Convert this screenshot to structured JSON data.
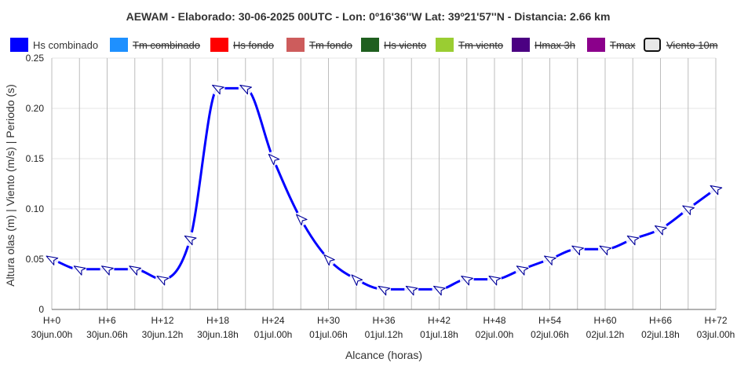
{
  "chart_data": {
    "type": "line",
    "title": "AEWAM  -  Elaborado: 30-06-2025 00UTC  -  Lon: 0º16'36''W Lat: 39º21'57''N  -  Distancia: 2.66 km",
    "xlabel": "Alcance (horas)",
    "ylabel": "Altura olas (m) |  Viento (m/s)  |  Periodo (s)",
    "xlim": [
      0,
      72
    ],
    "ylim": [
      0,
      0.25
    ],
    "yticks": [
      "0",
      "0.05",
      "0.10",
      "0.15",
      "0.20",
      "0.25"
    ],
    "ytick_values": [
      0,
      0.05,
      0.1,
      0.15,
      0.2,
      0.25
    ],
    "grid": true,
    "legend_position": "top",
    "xticks": [
      {
        "h": 0,
        "hour": "H+0",
        "date": "30jun.00h"
      },
      {
        "h": 6,
        "hour": "H+6",
        "date": "30jun.06h"
      },
      {
        "h": 12,
        "hour": "H+12",
        "date": "30jun.12h"
      },
      {
        "h": 18,
        "hour": "H+18",
        "date": "30jun.18h"
      },
      {
        "h": 24,
        "hour": "H+24",
        "date": "01jul.00h"
      },
      {
        "h": 30,
        "hour": "H+30",
        "date": "01jul.06h"
      },
      {
        "h": 36,
        "hour": "H+36",
        "date": "01jul.12h"
      },
      {
        "h": 42,
        "hour": "H+42",
        "date": "01jul.18h"
      },
      {
        "h": 48,
        "hour": "H+48",
        "date": "02jul.00h"
      },
      {
        "h": 54,
        "hour": "H+54",
        "date": "02jul.06h"
      },
      {
        "h": 60,
        "hour": "H+60",
        "date": "02jul.12h"
      },
      {
        "h": 66,
        "hour": "H+66",
        "date": "02jul.18h"
      },
      {
        "h": 72,
        "hour": "H+72",
        "date": "03jul.00h"
      }
    ],
    "legend": [
      {
        "name": "Hs combinado",
        "color": "#0000ff",
        "visible": true
      },
      {
        "name": "Tm combinado",
        "color": "#1e90ff",
        "visible": false
      },
      {
        "name": "Hs fondo",
        "color": "#ff0000",
        "visible": false
      },
      {
        "name": "Tm fondo",
        "color": "#cd5c5c",
        "visible": false
      },
      {
        "name": "Hs viento",
        "color": "#1f5f1f",
        "visible": false
      },
      {
        "name": "Tm viento",
        "color": "#9acd32",
        "visible": false
      },
      {
        "name": "Hmax 3h",
        "color": "#4b0082",
        "visible": false
      },
      {
        "name": "Tmax",
        "color": "#8b008b",
        "visible": false
      },
      {
        "name": "Viento 10m",
        "color": "#e8e8e8",
        "visible": false
      }
    ],
    "series": [
      {
        "name": "Hs combinado",
        "color": "#0000ff",
        "x": [
          0,
          3,
          6,
          9,
          12,
          15,
          18,
          21,
          24,
          27,
          30,
          33,
          36,
          39,
          42,
          45,
          48,
          51,
          54,
          57,
          60,
          63,
          66,
          69,
          72
        ],
        "values": [
          0.05,
          0.04,
          0.04,
          0.04,
          0.03,
          0.07,
          0.22,
          0.22,
          0.15,
          0.09,
          0.05,
          0.03,
          0.02,
          0.02,
          0.02,
          0.03,
          0.03,
          0.04,
          0.05,
          0.06,
          0.06,
          0.07,
          0.08,
          0.1,
          0.12
        ],
        "wave_direction_deg": [
          300,
          300,
          300,
          300,
          300,
          300,
          300,
          300,
          315,
          315,
          315,
          315,
          300,
          300,
          300,
          300,
          300,
          300,
          300,
          300,
          300,
          300,
          300,
          300,
          300
        ]
      }
    ]
  }
}
